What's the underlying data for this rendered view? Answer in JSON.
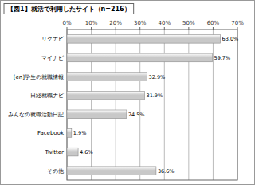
{
  "chart_data": {
    "type": "bar",
    "orientation": "horizontal",
    "title": "【図1】就活で利用したサイト（n=216）",
    "categories": [
      "リクナビ",
      "マイナビ",
      "[en]学生の就職情報",
      "日経就職ナビ",
      "みんなの就職活動日記",
      "Facebook",
      "Twitter",
      "その他"
    ],
    "values": [
      63.0,
      59.7,
      32.9,
      31.9,
      24.5,
      1.9,
      4.6,
      36.6
    ],
    "value_labels": [
      "63.0%",
      "59.7%",
      "32.9%",
      "31.9%",
      "24.5%",
      "1.9%",
      "4.6%",
      "36.6%"
    ],
    "color": "#c8c8c8",
    "xlim": [
      0,
      70
    ],
    "xticks": [
      {
        "value": 0,
        "label": "0%"
      },
      {
        "value": 10,
        "label": "10%"
      },
      {
        "value": 20,
        "label": "20%"
      },
      {
        "value": 30,
        "label": "30%"
      },
      {
        "value": 40,
        "label": "40%"
      },
      {
        "value": 50,
        "label": "50%"
      },
      {
        "value": 60,
        "label": "60%"
      },
      {
        "value": 70,
        "label": "70%"
      }
    ],
    "grid": true,
    "data_labels": true
  }
}
